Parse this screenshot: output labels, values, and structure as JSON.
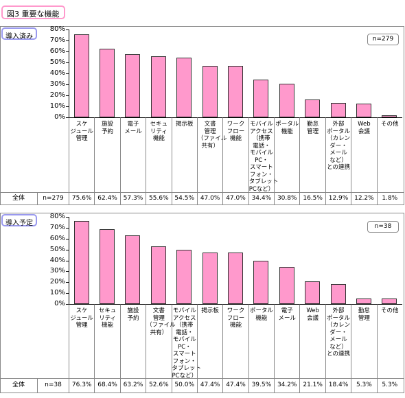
{
  "title": "図3 重要な機能",
  "chart_data": [
    {
      "type": "bar",
      "label": "導入済み",
      "n_label": "n=279",
      "row_label": "全体",
      "color": "#ff99cc",
      "categories": [
        "スケ\nジュール\n管理",
        "施設\n予約",
        "電子\nメール",
        "セキュ\nリティ\n機能",
        "掲示板",
        "文書\n管理\n（ファイル\n共有）",
        "ワーク\nフロー\n機能",
        "モバイル\nアクセス\n（携帯\n電話・\nモバイル\nPC・\nスマート\nフォン・\nタブレット\nPCなど）",
        "ポータル\n機能",
        "勤怠\n管理",
        "外部\nポータル\n（カレン\nダー・\nメール\nなど）\nとの連携",
        "Web\n会議",
        "その他"
      ],
      "values": [
        75.6,
        62.4,
        57.3,
        55.6,
        54.5,
        47.0,
        47.0,
        34.4,
        30.8,
        16.5,
        12.9,
        12.2,
        1.8
      ],
      "value_labels": [
        "75.6%",
        "62.4%",
        "57.3%",
        "55.6%",
        "54.5%",
        "47.0%",
        "47.0%",
        "34.4%",
        "30.8%",
        "16.5%",
        "12.9%",
        "12.2%",
        "1.8%"
      ],
      "ylim": [
        0,
        80
      ],
      "yticks": [
        {
          "value": 0,
          "label": "0%"
        },
        {
          "value": 10,
          "label": "10%"
        },
        {
          "value": 20,
          "label": "20%"
        },
        {
          "value": 30,
          "label": "30%"
        },
        {
          "value": 40,
          "label": "40%"
        },
        {
          "value": 50,
          "label": "50%"
        },
        {
          "value": 60,
          "label": "60%"
        },
        {
          "value": 70,
          "label": "70%"
        },
        {
          "value": 80,
          "label": "80%"
        }
      ]
    },
    {
      "type": "bar",
      "label": "導入予定",
      "n_label": "n=38",
      "row_label": "全体",
      "color": "#ff99cc",
      "categories": [
        "スケ\nジュール\n管理",
        "セキュ\nリティ\n機能",
        "施設\n予約",
        "文書\n管理\n（ファイル\n共有）",
        "モバイル\nアクセス\n（携帯\n電話・\nモバイル\nPC・\nスマート\nフォン・\nタブレット\nPCなど）",
        "掲示板",
        "ワーク\nフロー\n機能",
        "ポータル\n機能",
        "電子\nメール",
        "Web\n会議",
        "外部\nポータル\n（カレン\nダー・\nメール\nなど）\nとの連携",
        "勤怠\n管理",
        "その他"
      ],
      "values": [
        76.3,
        68.4,
        63.2,
        52.6,
        50.0,
        47.4,
        47.4,
        39.5,
        34.2,
        21.1,
        18.4,
        5.3,
        5.3
      ],
      "value_labels": [
        "76.3%",
        "68.4%",
        "63.2%",
        "52.6%",
        "50.0%",
        "47.4%",
        "47.4%",
        "39.5%",
        "34.2%",
        "21.1%",
        "18.4%",
        "5.3%",
        "5.3%"
      ],
      "ylim": [
        0,
        80
      ],
      "yticks": [
        {
          "value": 0,
          "label": "0%"
        },
        {
          "value": 10,
          "label": "10%"
        },
        {
          "value": 20,
          "label": "20%"
        },
        {
          "value": 30,
          "label": "30%"
        },
        {
          "value": 40,
          "label": "40%"
        },
        {
          "value": 50,
          "label": "50%"
        },
        {
          "value": 60,
          "label": "60%"
        },
        {
          "value": 70,
          "label": "70%"
        },
        {
          "value": 80,
          "label": "80%"
        }
      ]
    }
  ]
}
